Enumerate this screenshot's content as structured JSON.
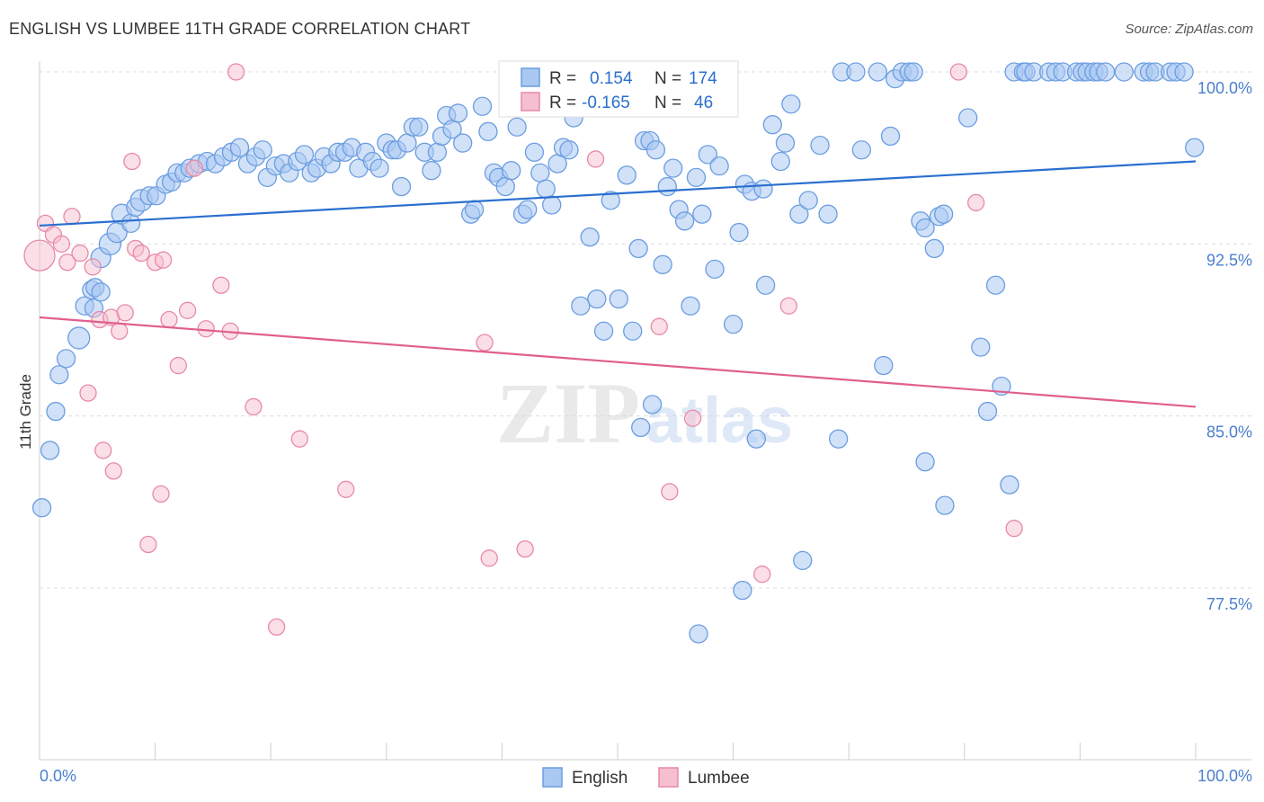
{
  "title": "ENGLISH VS LUMBEE 11TH GRADE CORRELATION CHART",
  "source": "Source: ZipAtlas.com",
  "chart_data": {
    "type": "scatter",
    "ylabel": "11th Grade",
    "xlabel": "",
    "xlim": [
      0,
      100
    ],
    "ylim": [
      70,
      101
    ],
    "x_tick_labels": [
      "0.0%",
      "100.0%"
    ],
    "y_ticks": [
      {
        "value": 100.0,
        "label": "100.0%"
      },
      {
        "value": 92.5,
        "label": "92.5%"
      },
      {
        "value": 85.0,
        "label": "85.0%"
      },
      {
        "value": 77.5,
        "label": "77.5%"
      }
    ],
    "grid": "dashed horizontal",
    "legend_position": "top-center",
    "stats": [
      {
        "series": "English",
        "r_label": "R =",
        "r_value": "0.154",
        "n_label": "N =",
        "n_value": "174"
      },
      {
        "series": "Lumbee",
        "r_label": "R =",
        "r_value": "-0.165",
        "n_label": "N =",
        "n_value": "46"
      }
    ],
    "watermark": {
      "zip": "ZIP",
      "atlas": "atlas"
    },
    "colors": {
      "english_fill": "#a9c8f2",
      "english_stroke": "#6b9de0",
      "english_line": "#2a6fcf",
      "lumbee_fill": "#f6bfd0",
      "lumbee_stroke": "#e889a8",
      "lumbee_line": "#e05f8c"
    },
    "series": [
      {
        "name": "English",
        "trend": {
          "x": [
            0,
            100
          ],
          "y": [
            93.3,
            96.1
          ]
        },
        "points": [
          [
            0.2,
            81.0,
            10
          ],
          [
            0.9,
            83.5,
            10
          ],
          [
            1.4,
            85.2,
            10
          ],
          [
            1.7,
            86.8,
            10
          ],
          [
            2.3,
            87.5,
            10
          ],
          [
            3.4,
            88.4,
            12
          ],
          [
            3.9,
            89.8,
            10
          ],
          [
            4.7,
            89.7,
            10
          ],
          [
            4.5,
            90.5,
            10
          ],
          [
            4.8,
            90.6,
            10
          ],
          [
            5.3,
            90.4,
            10
          ],
          [
            5.3,
            91.9,
            11
          ],
          [
            6.1,
            92.5,
            12
          ],
          [
            6.7,
            93.0,
            11
          ],
          [
            7.1,
            93.8,
            11
          ],
          [
            7.9,
            93.4,
            10
          ],
          [
            8.3,
            94.1,
            10
          ],
          [
            8.8,
            94.4,
            12
          ],
          [
            9.5,
            94.6,
            10
          ],
          [
            10.1,
            94.6,
            10
          ],
          [
            10.9,
            95.1,
            10
          ],
          [
            11.4,
            95.2,
            10
          ],
          [
            11.9,
            95.6,
            10
          ],
          [
            12.5,
            95.6,
            10
          ],
          [
            13.0,
            95.8,
            10
          ],
          [
            13.8,
            96.0,
            10
          ],
          [
            14.5,
            96.1,
            10
          ],
          [
            15.2,
            96.0,
            10
          ],
          [
            15.9,
            96.3,
            10
          ],
          [
            16.6,
            96.5,
            10
          ],
          [
            17.3,
            96.7,
            10
          ],
          [
            18.0,
            96.0,
            10
          ],
          [
            18.7,
            96.3,
            10
          ],
          [
            19.3,
            96.6,
            10
          ],
          [
            19.7,
            95.4,
            10
          ],
          [
            20.4,
            95.9,
            10
          ],
          [
            21.1,
            96.0,
            10
          ],
          [
            21.6,
            95.6,
            10
          ],
          [
            22.3,
            96.1,
            10
          ],
          [
            22.9,
            96.4,
            10
          ],
          [
            23.5,
            95.6,
            10
          ],
          [
            24.0,
            95.8,
            10
          ],
          [
            24.6,
            96.3,
            10
          ],
          [
            25.2,
            96.0,
            10
          ],
          [
            25.8,
            96.5,
            10
          ],
          [
            26.4,
            96.5,
            10
          ],
          [
            27.0,
            96.7,
            10
          ],
          [
            27.6,
            95.8,
            10
          ],
          [
            28.2,
            96.5,
            10
          ],
          [
            28.8,
            96.1,
            10
          ],
          [
            29.4,
            95.8,
            10
          ],
          [
            30.0,
            96.9,
            10
          ],
          [
            30.5,
            96.6,
            10
          ],
          [
            30.9,
            96.6,
            10
          ],
          [
            31.3,
            95.0,
            10
          ],
          [
            31.8,
            96.9,
            10
          ],
          [
            32.3,
            97.6,
            10
          ],
          [
            32.8,
            97.6,
            10
          ],
          [
            33.3,
            96.5,
            10
          ],
          [
            33.9,
            95.7,
            10
          ],
          [
            34.4,
            96.5,
            10
          ],
          [
            34.8,
            97.2,
            10
          ],
          [
            35.2,
            98.1,
            10
          ],
          [
            35.7,
            97.5,
            10
          ],
          [
            36.2,
            98.2,
            10
          ],
          [
            36.6,
            96.9,
            10
          ],
          [
            37.3,
            93.8,
            10
          ],
          [
            37.6,
            94.0,
            10
          ],
          [
            38.3,
            98.5,
            10
          ],
          [
            38.8,
            97.4,
            10
          ],
          [
            39.3,
            95.6,
            10
          ],
          [
            39.7,
            95.4,
            10
          ],
          [
            40.3,
            95.0,
            10
          ],
          [
            40.8,
            95.7,
            10
          ],
          [
            41.3,
            97.6,
            10
          ],
          [
            41.8,
            93.8,
            10
          ],
          [
            42.2,
            94.0,
            10
          ],
          [
            42.8,
            96.5,
            10
          ],
          [
            43.3,
            95.6,
            10
          ],
          [
            43.8,
            94.9,
            10
          ],
          [
            44.3,
            94.2,
            10
          ],
          [
            44.8,
            96.0,
            10
          ],
          [
            45.3,
            96.7,
            10
          ],
          [
            45.8,
            96.6,
            10
          ],
          [
            46.2,
            98.0,
            10
          ],
          [
            46.8,
            98.7,
            10
          ],
          [
            46.8,
            89.8,
            10
          ],
          [
            47.6,
            92.8,
            10
          ],
          [
            48.2,
            90.1,
            10
          ],
          [
            48.8,
            88.7,
            10
          ],
          [
            49.4,
            94.4,
            10
          ],
          [
            50.1,
            90.1,
            10
          ],
          [
            50.8,
            95.5,
            10
          ],
          [
            51.3,
            88.7,
            10
          ],
          [
            51.8,
            92.3,
            10
          ],
          [
            52.3,
            97.0,
            10
          ],
          [
            52.8,
            97.0,
            10
          ],
          [
            53.3,
            96.6,
            10
          ],
          [
            53.9,
            91.6,
            10
          ],
          [
            54.3,
            95.0,
            10
          ],
          [
            54.8,
            95.8,
            10
          ],
          [
            55.3,
            94.0,
            10
          ],
          [
            55.8,
            93.5,
            10
          ],
          [
            56.3,
            89.8,
            10
          ],
          [
            56.8,
            95.4,
            10
          ],
          [
            57.3,
            93.8,
            10
          ],
          [
            57.8,
            96.4,
            10
          ],
          [
            58.4,
            91.4,
            10
          ],
          [
            58.8,
            95.9,
            10
          ],
          [
            59.4,
            99.8,
            10
          ],
          [
            60.0,
            89.0,
            10
          ],
          [
            60.5,
            93.0,
            10
          ],
          [
            61.0,
            95.1,
            10
          ],
          [
            61.6,
            94.8,
            10
          ],
          [
            62.0,
            84.0,
            10
          ],
          [
            62.6,
            94.9,
            10
          ],
          [
            62.8,
            90.7,
            10
          ],
          [
            63.4,
            97.7,
            10
          ],
          [
            64.1,
            96.1,
            10
          ],
          [
            64.5,
            96.9,
            10
          ],
          [
            65.0,
            98.6,
            10
          ],
          [
            65.7,
            93.8,
            10
          ],
          [
            66.0,
            78.7,
            10
          ],
          [
            66.5,
            94.4,
            10
          ],
          [
            67.5,
            96.8,
            10
          ],
          [
            68.2,
            93.8,
            10
          ],
          [
            69.1,
            84.0,
            10
          ],
          [
            69.4,
            100.0,
            10
          ],
          [
            70.6,
            100.0,
            10
          ],
          [
            71.1,
            96.6,
            10
          ],
          [
            72.5,
            100.0,
            10
          ],
          [
            73.0,
            87.2,
            10
          ],
          [
            73.6,
            97.2,
            10
          ],
          [
            74.0,
            99.7,
            10
          ],
          [
            74.6,
            100.0,
            10
          ],
          [
            75.2,
            100.0,
            10
          ],
          [
            75.6,
            100.0,
            10
          ],
          [
            76.2,
            93.5,
            10
          ],
          [
            76.6,
            93.2,
            10
          ],
          [
            76.6,
            83.0,
            10
          ],
          [
            77.4,
            92.3,
            10
          ],
          [
            77.8,
            93.7,
            10
          ],
          [
            78.2,
            93.8,
            10
          ],
          [
            78.3,
            81.1,
            10
          ],
          [
            80.3,
            98.0,
            10
          ],
          [
            81.4,
            88.0,
            10
          ],
          [
            82.0,
            85.2,
            10
          ],
          [
            82.7,
            90.7,
            10
          ],
          [
            83.2,
            86.3,
            10
          ],
          [
            83.9,
            82.0,
            10
          ],
          [
            84.3,
            100.0,
            10
          ],
          [
            85.1,
            100.0,
            10
          ],
          [
            85.3,
            100.0,
            10
          ],
          [
            86.0,
            100.0,
            10
          ],
          [
            87.3,
            100.0,
            10
          ],
          [
            87.9,
            100.0,
            10
          ],
          [
            88.5,
            100.0,
            10
          ],
          [
            89.7,
            100.0,
            10
          ],
          [
            90.2,
            100.0,
            10
          ],
          [
            90.6,
            100.0,
            10
          ],
          [
            91.2,
            100.0,
            10
          ],
          [
            91.6,
            100.0,
            10
          ],
          [
            92.2,
            100.0,
            10
          ],
          [
            93.8,
            100.0,
            10
          ],
          [
            95.5,
            100.0,
            10
          ],
          [
            96.0,
            100.0,
            10
          ],
          [
            96.5,
            100.0,
            10
          ],
          [
            97.8,
            100.0,
            10
          ],
          [
            98.3,
            100.0,
            10
          ],
          [
            99.0,
            100.0,
            10
          ],
          [
            99.9,
            96.7,
            10
          ],
          [
            60.8,
            77.4,
            10
          ],
          [
            57.0,
            75.5,
            10
          ],
          [
            52.0,
            84.5,
            10
          ],
          [
            53.0,
            85.5,
            10
          ]
        ]
      },
      {
        "name": "Lumbee",
        "trend": {
          "x": [
            0,
            100
          ],
          "y": [
            89.3,
            85.4
          ]
        },
        "points": [
          [
            0.0,
            92.0,
            17
          ],
          [
            0.5,
            93.4,
            9
          ],
          [
            1.2,
            92.9,
            9
          ],
          [
            1.9,
            92.5,
            9
          ],
          [
            2.4,
            91.7,
            9
          ],
          [
            2.8,
            93.7,
            9
          ],
          [
            3.5,
            92.1,
            9
          ],
          [
            4.2,
            86.0,
            9
          ],
          [
            4.6,
            91.5,
            9
          ],
          [
            5.2,
            89.2,
            9
          ],
          [
            5.5,
            83.5,
            9
          ],
          [
            6.2,
            89.3,
            9
          ],
          [
            6.4,
            82.6,
            9
          ],
          [
            6.9,
            88.7,
            9
          ],
          [
            7.4,
            89.5,
            9
          ],
          [
            8.0,
            96.1,
            9
          ],
          [
            8.3,
            92.3,
            9
          ],
          [
            8.8,
            92.1,
            9
          ],
          [
            9.4,
            79.4,
            9
          ],
          [
            10.0,
            91.7,
            9
          ],
          [
            10.5,
            81.6,
            9
          ],
          [
            10.7,
            91.8,
            9
          ],
          [
            11.2,
            89.2,
            9
          ],
          [
            12.0,
            87.2,
            9
          ],
          [
            12.8,
            89.6,
            9
          ],
          [
            13.4,
            95.8,
            9
          ],
          [
            14.4,
            88.8,
            9
          ],
          [
            15.7,
            90.7,
            9
          ],
          [
            16.5,
            88.7,
            9
          ],
          [
            17.0,
            100.0,
            9
          ],
          [
            18.5,
            85.4,
            9
          ],
          [
            20.5,
            75.8,
            9
          ],
          [
            22.5,
            84.0,
            9
          ],
          [
            26.5,
            81.8,
            9
          ],
          [
            38.5,
            88.2,
            9
          ],
          [
            38.9,
            78.8,
            9
          ],
          [
            42.0,
            79.2,
            9
          ],
          [
            48.1,
            96.2,
            9
          ],
          [
            53.6,
            88.9,
            9
          ],
          [
            54.5,
            81.7,
            9
          ],
          [
            56.5,
            84.9,
            9
          ],
          [
            62.5,
            78.1,
            9
          ],
          [
            64.8,
            89.8,
            9
          ],
          [
            79.5,
            100.0,
            9
          ],
          [
            81.0,
            94.3,
            9
          ],
          [
            84.3,
            80.1,
            9
          ]
        ]
      }
    ]
  }
}
